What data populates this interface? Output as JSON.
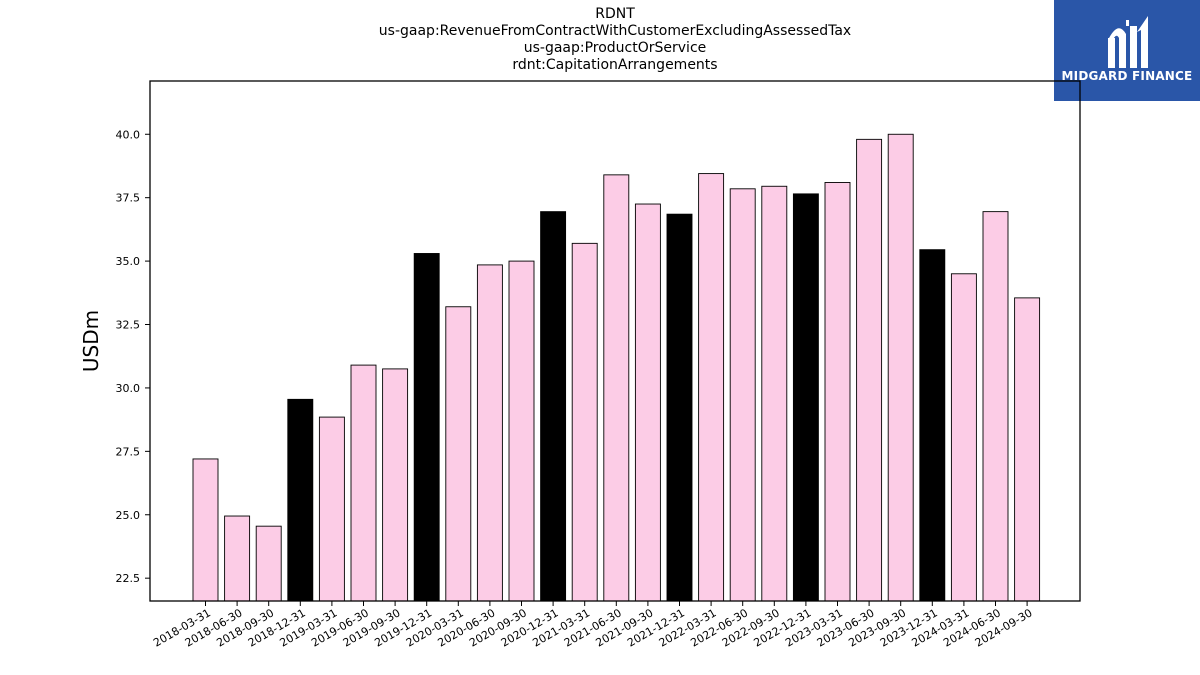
{
  "chart_data": {
    "type": "bar",
    "title_lines": [
      "RDNT",
      "us-gaap:RevenueFromContractWithCustomerExcludingAssessedTax",
      "us-gaap:ProductOrService",
      "rdnt:CapitationArrangements"
    ],
    "xlabel": "",
    "ylabel": "USDm",
    "ylim": [
      21.6,
      42.1
    ],
    "yticks": [
      "22.5",
      "25.0",
      "27.5",
      "30.0",
      "32.5",
      "35.0",
      "37.5",
      "40.0"
    ],
    "categories": [
      "2018-03-31",
      "2018-06-30",
      "2018-09-30",
      "2018-12-31",
      "2019-03-31",
      "2019-06-30",
      "2019-09-30",
      "2019-12-31",
      "2020-03-31",
      "2020-06-30",
      "2020-09-30",
      "2020-12-31",
      "2021-03-31",
      "2021-06-30",
      "2021-09-30",
      "2021-12-31",
      "2022-03-31",
      "2022-06-30",
      "2022-09-30",
      "2022-12-31",
      "2023-03-31",
      "2023-06-30",
      "2023-09-30",
      "2023-12-31",
      "2024-03-31",
      "2024-06-30",
      "2024-09-30"
    ],
    "values": [
      27.2,
      24.95,
      24.55,
      29.55,
      28.85,
      30.9,
      30.75,
      35.3,
      33.2,
      34.85,
      35.0,
      36.95,
      35.7,
      38.4,
      37.25,
      36.85,
      38.45,
      37.85,
      37.95,
      37.65,
      38.1,
      39.8,
      40.0,
      35.45,
      34.5,
      36.95,
      33.55
    ],
    "highlight_colors": {
      "default": "#fccce6",
      "year_end": "#000000"
    },
    "grid": false,
    "legend": "none"
  },
  "logo": {
    "text": "MIDGARD FINANCE",
    "bg_color": "#2a56a8"
  }
}
